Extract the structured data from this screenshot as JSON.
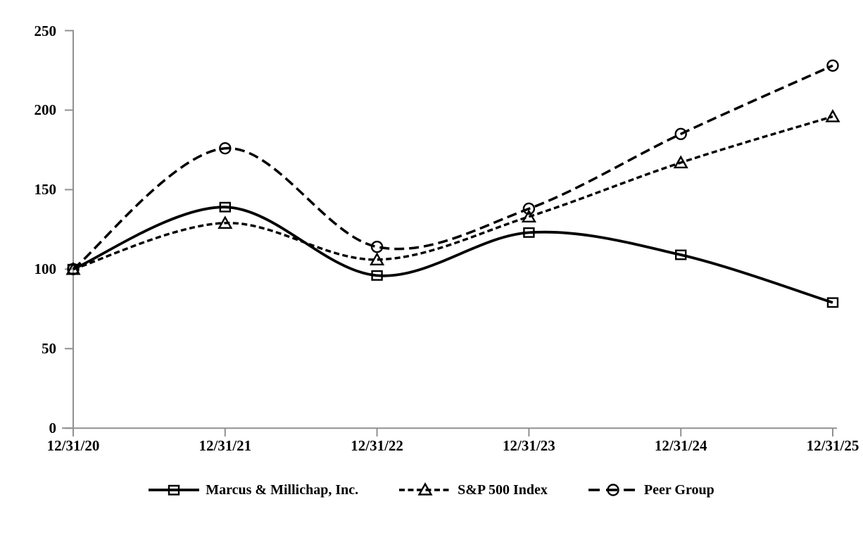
{
  "chart_data": {
    "type": "line",
    "title": "",
    "xlabel": "",
    "ylabel": "",
    "categories": [
      "12/31/20",
      "12/31/21",
      "12/31/22",
      "12/31/23",
      "12/31/24",
      "12/31/25"
    ],
    "series": [
      {
        "name": "Marcus & Millichap, Inc.",
        "marker": "square",
        "line_style": "solid",
        "values": [
          100,
          139,
          96,
          123,
          109,
          79
        ]
      },
      {
        "name": "S&P 500 Index",
        "marker": "triangle",
        "line_style": "short-dash",
        "values": [
          100,
          129,
          106,
          133,
          167,
          196
        ]
      },
      {
        "name": "Peer Group",
        "marker": "circle",
        "line_style": "long-dash",
        "values": [
          100,
          176,
          114,
          138,
          185,
          228
        ]
      }
    ],
    "ylim": [
      0,
      250
    ],
    "yticks": [
      0,
      50,
      100,
      150,
      200,
      250
    ],
    "grid": false,
    "smooth_lines": true,
    "legend_position": "bottom",
    "series_color": "#000000",
    "axis_color": "#909090",
    "background": "#ffffff"
  }
}
